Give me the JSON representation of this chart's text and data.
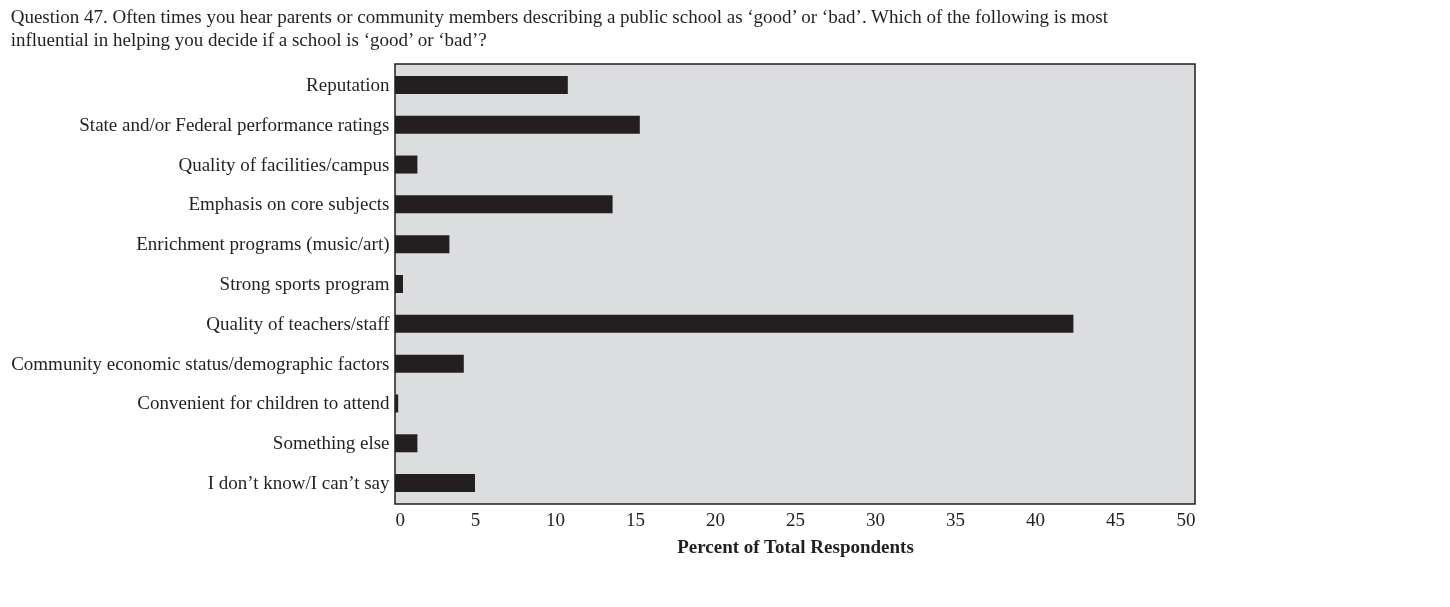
{
  "chart_data": {
    "type": "bar",
    "orientation": "horizontal",
    "title": "Question 47. Often times you hear parents or community members describing a public school as ‘good’ or ‘bad’. Which of the following is most influential in helping you decide if a school is ‘good’ or ‘bad’?",
    "xlabel": "Percent of Total Respondents",
    "categories": [
      "Reputation",
      "State and/or Federal performance ratings",
      "Quality of facilities/campus",
      "Emphasis on core subjects",
      "Enrichment programs (music/art)",
      "Strong sports program",
      "Quality of teachers/staff",
      "Community economic status/demographic factors",
      "Convenient for children to attend",
      "Something else",
      "I don’t know/I can’t say"
    ],
    "values": [
      10.8,
      15.3,
      1.4,
      13.6,
      3.4,
      0.5,
      42.4,
      4.3,
      0.2,
      1.4,
      5.0
    ],
    "color": "#231f20",
    "xlim": [
      0,
      50
    ],
    "xticks": [
      0,
      5,
      10,
      15,
      20,
      25,
      30,
      35,
      40,
      45,
      50
    ],
    "grid": false
  }
}
